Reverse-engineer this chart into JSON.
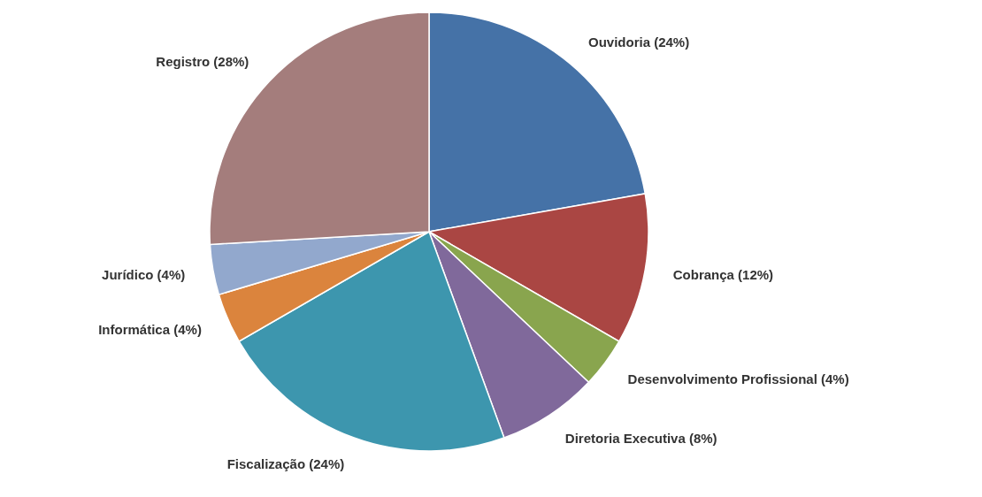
{
  "chart_data": {
    "type": "pie",
    "categories": [
      "Ouvidoria (24%)",
      "Cobrança (12%)",
      "Desenvolvimento Profissional (4%)",
      "Diretoria Executiva (8%)",
      "Fiscalização (24%)",
      "Informática (4%)",
      "Jurídico (4%)",
      "Registro (28%)"
    ],
    "values": [
      24,
      12,
      4,
      8,
      24,
      4,
      4,
      28
    ],
    "colors": [
      "#4572a7",
      "#aa4643",
      "#89a54e",
      "#80699b",
      "#3d96ae",
      "#db843d",
      "#92a8cd",
      "#a47d7c"
    ]
  }
}
